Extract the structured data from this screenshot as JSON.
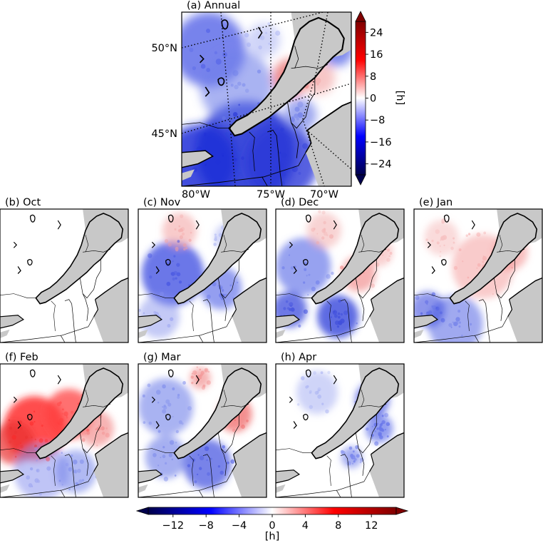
{
  "chart_data": {
    "type": "heatmap",
    "unit_label": "[h]",
    "colormap": {
      "name": "seismic",
      "low_color": "#00004d",
      "mid_color": "#ffffff",
      "high_color": "#800000",
      "extend": "both"
    },
    "map_background": "#c8c8c8",
    "panels": [
      {
        "key": "annual",
        "title": "(a) Annual",
        "lat_labels": [
          "50°N",
          "45°N"
        ],
        "lon_labels": [
          "80°W",
          "75°W",
          "70°W"
        ]
      },
      {
        "key": "oct",
        "title": "(b) Oct"
      },
      {
        "key": "nov",
        "title": "(c) Nov"
      },
      {
        "key": "dec",
        "title": "(d) Dec"
      },
      {
        "key": "jan",
        "title": "(e) Jan"
      },
      {
        "key": "feb",
        "title": "(f) Feb"
      },
      {
        "key": "mar",
        "title": "(g) Mar"
      },
      {
        "key": "apr",
        "title": "(h) Apr"
      }
    ],
    "colorbar_annual": {
      "range": [
        -28,
        28
      ],
      "ticks": [
        24,
        16,
        8,
        0,
        -8,
        -16,
        -24
      ],
      "tick_labels": [
        "24",
        "16",
        "8",
        "0",
        "−8",
        "−16",
        "−24"
      ],
      "label": "[h]"
    },
    "colorbar_monthly": {
      "range": [
        -15,
        15
      ],
      "ticks": [
        -12,
        -8,
        -4,
        0,
        4,
        8,
        12
      ],
      "tick_labels": [
        "−12",
        "−8",
        "−4",
        "0",
        "4",
        "8",
        "12"
      ],
      "label": "[h]"
    }
  }
}
